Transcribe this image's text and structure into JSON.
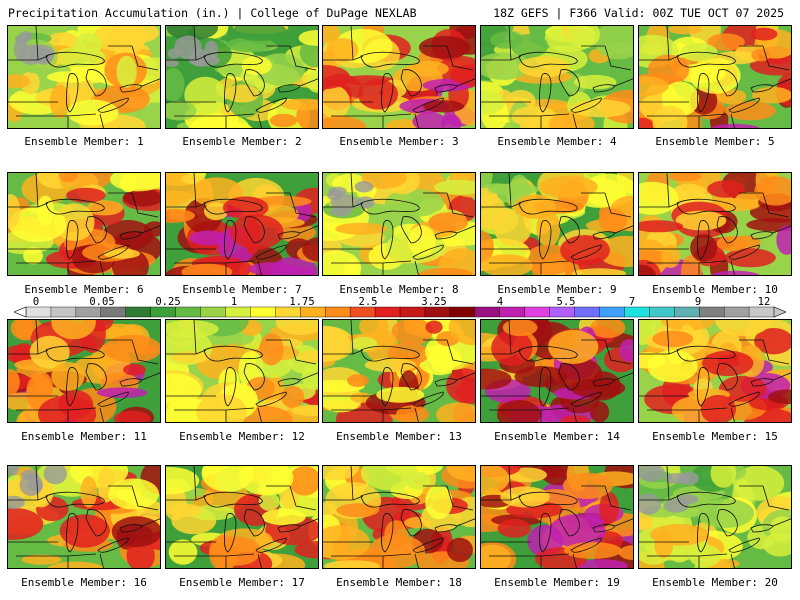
{
  "header": {
    "title_left": "Precipitation Accumulation (in.) | College of DuPage NEXLAB",
    "title_right": "18Z GEFS | F366 Valid: 00Z TUE OCT 07 2025"
  },
  "colorbar": {
    "labels": [
      "0",
      "0.05",
      "0.25",
      "1",
      "1.75",
      "2.5",
      "3.25",
      "4",
      "5.5",
      "7",
      "9",
      "12"
    ],
    "colors": [
      "#e0e0e0",
      "#c4c4c4",
      "#a0a0a0",
      "#7a7a7a",
      "#2e7d32",
      "#3f9f3a",
      "#66bb44",
      "#98d34a",
      "#d7f03c",
      "#ffff33",
      "#ffd633",
      "#ffb020",
      "#ff8c1a",
      "#f05020",
      "#e02020",
      "#c81818",
      "#a01010",
      "#800000",
      "#9a1080",
      "#c020b0",
      "#e040e0",
      "#b060ff",
      "#7070ff",
      "#40a0ff",
      "#20e0e0",
      "#40c8c8",
      "#60b0b0",
      "#808080",
      "#a0a0a0",
      "#c8c8c8"
    ]
  },
  "panels": [
    {
      "label": "Ensemble Member: 1",
      "member": 1
    },
    {
      "label": "Ensemble Member: 2",
      "member": 2
    },
    {
      "label": "Ensemble Member: 3",
      "member": 3
    },
    {
      "label": "Ensemble Member: 4",
      "member": 4
    },
    {
      "label": "Ensemble Member: 5",
      "member": 5
    },
    {
      "label": "Ensemble Member: 6",
      "member": 6
    },
    {
      "label": "Ensemble Member: 7",
      "member": 7
    },
    {
      "label": "Ensemble Member: 8",
      "member": 8
    },
    {
      "label": "Ensemble Member: 9",
      "member": 9
    },
    {
      "label": "Ensemble Member: 10",
      "member": 10
    },
    {
      "label": "Ensemble Member: 11",
      "member": 11
    },
    {
      "label": "Ensemble Member: 12",
      "member": 12
    },
    {
      "label": "Ensemble Member: 13",
      "member": 13
    },
    {
      "label": "Ensemble Member: 14",
      "member": 14
    },
    {
      "label": "Ensemble Member: 15",
      "member": 15
    },
    {
      "label": "Ensemble Member: 16",
      "member": 16
    },
    {
      "label": "Ensemble Member: 17",
      "member": 17
    },
    {
      "label": "Ensemble Member: 18",
      "member": 18
    },
    {
      "label": "Ensemble Member: 19",
      "member": 19
    },
    {
      "label": "Ensemble Member: 20",
      "member": 20
    }
  ]
}
